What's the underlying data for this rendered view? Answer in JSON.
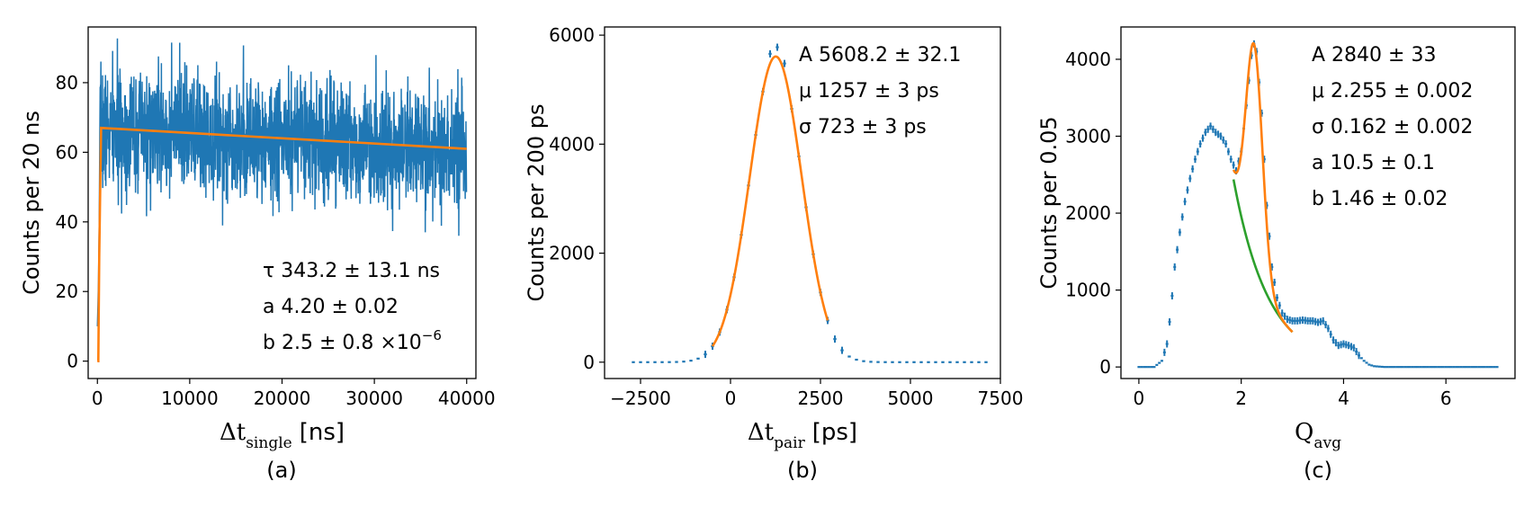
{
  "chart_data": [
    {
      "type": "line",
      "caption": "(a)",
      "ylabel": "Counts per 20 ns",
      "xlabel_symbol": "Δt",
      "xlabel_sub": "single",
      "xlabel_unit": "[ns]",
      "xlim": [
        -1000,
        41000
      ],
      "ylim": [
        -5,
        96
      ],
      "xticks": [
        0,
        10000,
        20000,
        30000,
        40000
      ],
      "xtick_labels": [
        "0",
        "10000",
        "20000",
        "30000",
        "40000"
      ],
      "yticks": [
        0,
        20,
        40,
        60,
        80
      ],
      "ytick_labels": [
        "0",
        "20",
        "40",
        "60",
        "80"
      ],
      "annotations": [
        "τ 343.2 ± 13.1 ns",
        "a 4.20 ± 0.02",
        "b 2.5 ± 0.8 ×10",
        "−6"
      ],
      "series": [
        {
          "role": "data",
          "color": "#1f77b4",
          "style": "step",
          "seed": 7,
          "x_start": 0,
          "x_end": 40000,
          "bins": 2000,
          "onset": [
            [
              0,
              10
            ],
            [
              60,
              16
            ],
            [
              120,
              23
            ],
            [
              200,
              40
            ],
            [
              300,
              60
            ]
          ],
          "baseline_start": 66.5,
          "baseline_end": 60.5,
          "noise_sd": 8.5
        },
        {
          "role": "fit",
          "color": "#ff7f0e",
          "x": [
            0,
            100,
            200,
            400,
            40000
          ],
          "y": [
            0,
            0,
            30,
            67,
            61
          ]
        }
      ]
    },
    {
      "type": "line",
      "caption": "(b)",
      "ylabel": "Counts per 200 ps",
      "xlabel_symbol": "Δt",
      "xlabel_sub": "pair",
      "xlabel_unit": "[ps]",
      "xlim": [
        -3500,
        7500
      ],
      "ylim": [
        -300,
        6150
      ],
      "xticks": [
        -2500,
        0,
        2500,
        5000,
        7500
      ],
      "xtick_labels": [
        "−2500",
        "0",
        "2500",
        "5000",
        "7500"
      ],
      "yticks": [
        0,
        2000,
        4000,
        6000
      ],
      "ytick_labels": [
        "0",
        "2000",
        "4000",
        "6000"
      ],
      "annotations": [
        "A 5608.2 ± 32.1",
        "μ 1257 ± 3 ps",
        "σ 723 ± 3 ps"
      ],
      "series": [
        {
          "role": "data",
          "color": "#1f77b4",
          "style": "dashes",
          "x_start": -2700,
          "x_end": 7100,
          "bin": 200,
          "amplitude": 5608.2,
          "mu": 1257,
          "sigma": 723,
          "peak_bump": 180
        },
        {
          "role": "fit",
          "color": "#ff7f0e",
          "x_start": -500,
          "x_end": 2700,
          "amplitude": 5608.2,
          "mu": 1257,
          "sigma": 723
        }
      ]
    },
    {
      "type": "line",
      "caption": "(c)",
      "ylabel": "Counts per 0.05",
      "xlabel_symbol": "Q",
      "xlabel_sub": "avg",
      "xlabel_unit": "",
      "xlim": [
        -0.35,
        7.35
      ],
      "ylim": [
        -150,
        4420
      ],
      "xticks": [
        0,
        2,
        4,
        6
      ],
      "xtick_labels": [
        "0",
        "2",
        "4",
        "6"
      ],
      "yticks": [
        0,
        1000,
        2000,
        3000,
        4000
      ],
      "ytick_labels": [
        "0",
        "1000",
        "2000",
        "3000",
        "4000"
      ],
      "annotations": [
        "A 2840 ± 33",
        "μ 2.255 ± 0.002",
        "σ 0.162 ± 0.002",
        "a 10.5 ± 0.1",
        "b 1.46 ± 0.02"
      ],
      "series": [
        {
          "role": "data",
          "color": "#1f77b4",
          "style": "dashes",
          "x": [
            0.0,
            0.3,
            0.45,
            0.55,
            0.62,
            0.7,
            0.8,
            0.9,
            1.0,
            1.1,
            1.2,
            1.3,
            1.4,
            1.5,
            1.6,
            1.7,
            1.8,
            1.9,
            2.0,
            2.1,
            2.2,
            2.25,
            2.3,
            2.4,
            2.5,
            2.6,
            2.7,
            2.8,
            2.9,
            3.0,
            3.1,
            3.2,
            3.3,
            3.4,
            3.5,
            3.6,
            3.7,
            3.8,
            3.9,
            4.0,
            4.1,
            4.2,
            4.3,
            4.4,
            4.5,
            4.6,
            4.7,
            4.8,
            5.0,
            6.0,
            7.0
          ],
          "y": [
            0,
            0,
            80,
            300,
            700,
            1300,
            1750,
            2150,
            2450,
            2700,
            2900,
            3050,
            3130,
            3050,
            3000,
            2900,
            2700,
            2550,
            2800,
            3400,
            4050,
            4200,
            4100,
            3300,
            2100,
            1300,
            900,
            700,
            620,
            600,
            600,
            610,
            600,
            600,
            580,
            600,
            500,
            350,
            280,
            300,
            280,
            250,
            150,
            80,
            30,
            10,
            5,
            0,
            0,
            0,
            0
          ]
        },
        {
          "role": "fit-background",
          "color": "#2ca02c",
          "x_start": 1.85,
          "x_end": 3.0,
          "a": 10.5,
          "b": 1.46
        },
        {
          "role": "fit-total",
          "color": "#ff7f0e",
          "x_start": 1.85,
          "x_end": 3.0,
          "amplitude": 2840,
          "mu": 2.255,
          "sigma": 0.162,
          "a": 10.5,
          "b": 1.46
        }
      ]
    }
  ]
}
